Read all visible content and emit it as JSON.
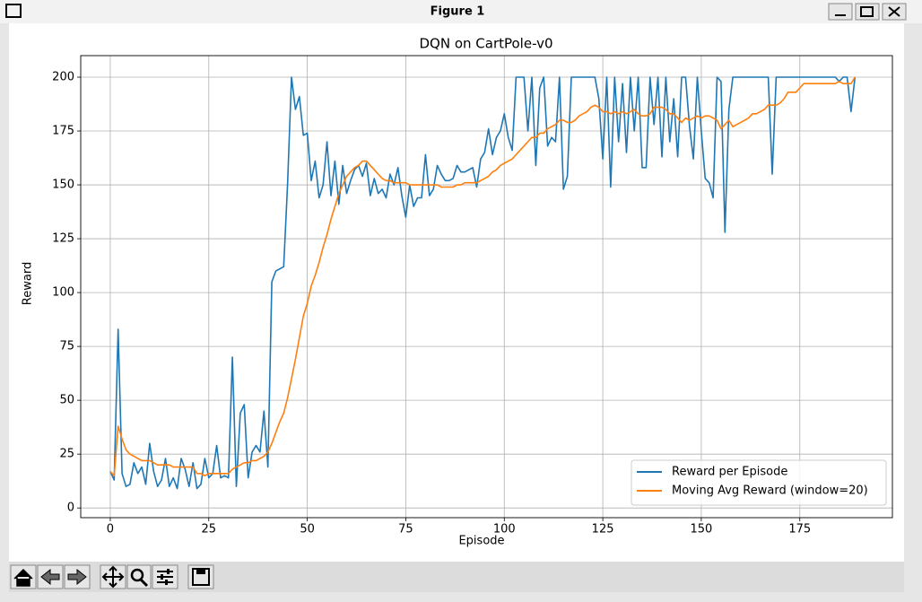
{
  "window": {
    "title": "Figure 1"
  },
  "chart_data": {
    "type": "line",
    "title": "DQN on CartPole-v0",
    "x_label": "Episode",
    "y_label": "Reward",
    "x": [
      0,
      1,
      2,
      3,
      4,
      5,
      6,
      7,
      8,
      9,
      10,
      11,
      12,
      13,
      14,
      15,
      16,
      17,
      18,
      19,
      20,
      21,
      22,
      23,
      24,
      25,
      26,
      27,
      28,
      29,
      30,
      31,
      32,
      33,
      34,
      35,
      36,
      37,
      38,
      39,
      40,
      41,
      42,
      43,
      44,
      45,
      46,
      47,
      48,
      49,
      50,
      51,
      52,
      53,
      54,
      55,
      56,
      57,
      58,
      59,
      60,
      61,
      62,
      63,
      64,
      65,
      66,
      67,
      68,
      69,
      70,
      71,
      72,
      73,
      74,
      75,
      76,
      77,
      78,
      79,
      80,
      81,
      82,
      83,
      84,
      85,
      86,
      87,
      88,
      89,
      90,
      91,
      92,
      93,
      94,
      95,
      96,
      97,
      98,
      99,
      100,
      101,
      102,
      103,
      104,
      105,
      106,
      107,
      108,
      109,
      110,
      111,
      112,
      113,
      114,
      115,
      116,
      117,
      118,
      119,
      120,
      121,
      122,
      123,
      124,
      125,
      126,
      127,
      128,
      129,
      130,
      131,
      132,
      133,
      134,
      135,
      136,
      137,
      138,
      139,
      140,
      141,
      142,
      143,
      144,
      145,
      146,
      147,
      148,
      149,
      150,
      151,
      152,
      153,
      154,
      155,
      156,
      157,
      158,
      159,
      160,
      161,
      162,
      163,
      164,
      165,
      166,
      167,
      168,
      169,
      170,
      171,
      172,
      173,
      174,
      175,
      176,
      177,
      178,
      179,
      180,
      181,
      182,
      183,
      184,
      185,
      186,
      187,
      188,
      189
    ],
    "series": [
      {
        "name": "Reward per Episode",
        "color": "#1f77b4",
        "values": [
          17,
          13,
          83,
          16,
          10,
          11,
          21,
          16,
          19,
          11,
          30,
          17,
          10,
          13,
          23,
          10,
          14,
          9,
          23,
          18,
          10,
          21,
          9,
          11,
          23,
          14,
          16,
          29,
          14,
          15,
          14,
          70,
          10,
          44,
          48,
          14,
          26,
          29,
          26,
          45,
          19,
          105,
          110,
          111,
          112,
          150,
          200,
          185,
          191,
          173,
          174,
          152,
          161,
          144,
          150,
          170,
          145,
          161,
          141,
          159,
          146,
          152,
          157,
          159,
          154,
          160,
          145,
          153,
          146,
          148,
          144,
          155,
          150,
          158,
          145,
          135,
          150,
          140,
          144,
          144,
          164,
          145,
          148,
          159,
          155,
          152,
          152,
          153,
          159,
          156,
          156,
          157,
          158,
          149,
          162,
          165,
          176,
          164,
          172,
          175,
          183,
          172,
          166,
          200,
          200,
          200,
          175,
          200,
          159,
          195,
          200,
          168,
          172,
          170,
          200,
          148,
          154,
          200,
          200,
          200,
          200,
          200,
          200,
          200,
          190,
          162,
          200,
          149,
          200,
          170,
          197,
          165,
          200,
          175,
          200,
          158,
          158,
          200,
          178,
          200,
          163,
          200,
          170,
          190,
          163,
          200,
          200,
          177,
          162,
          200,
          175,
          153,
          151,
          144,
          200,
          198,
          128,
          185,
          200,
          200,
          200,
          200,
          200,
          200,
          200,
          200,
          200,
          200,
          155,
          200,
          200,
          200,
          200,
          200,
          200,
          200,
          200,
          200,
          200,
          200,
          200,
          200,
          200,
          200,
          200,
          198,
          200,
          200,
          184,
          200
        ]
      },
      {
        "name": "Moving Avg Reward (window=20)",
        "color": "#ff7f0e",
        "values": [
          17,
          15,
          38,
          32,
          27,
          25,
          24,
          23,
          22,
          22,
          22,
          21,
          20,
          20,
          20,
          20,
          19,
          19,
          19,
          19,
          19,
          19,
          16,
          16,
          15,
          16,
          16,
          16,
          16,
          16,
          16,
          18,
          19,
          20,
          21,
          21,
          22,
          22,
          23,
          24,
          26,
          30,
          35,
          40,
          44,
          51,
          60,
          69,
          79,
          89,
          95,
          103,
          108,
          114,
          121,
          127,
          134,
          140,
          146,
          150,
          154,
          156,
          158,
          159,
          161,
          161,
          159,
          157,
          155,
          153,
          152,
          152,
          151,
          151,
          151,
          151,
          150,
          150,
          150,
          150,
          150,
          150,
          150,
          150,
          149,
          149,
          149,
          149,
          150,
          150,
          151,
          151,
          151,
          151,
          152,
          153,
          154,
          156,
          157,
          159,
          160,
          161,
          162,
          164,
          166,
          168,
          170,
          172,
          172,
          174,
          174,
          176,
          177,
          178,
          180,
          180,
          179,
          179,
          180,
          182,
          183,
          184,
          186,
          187,
          186,
          184,
          184,
          183,
          184,
          183,
          184,
          183,
          184,
          185,
          183,
          182,
          182,
          183,
          186,
          186,
          186,
          185,
          183,
          183,
          181,
          179,
          181,
          180,
          181,
          182,
          181,
          182,
          182,
          181,
          180,
          176,
          178,
          180,
          177,
          178,
          179,
          180,
          181,
          183,
          183,
          184,
          185,
          187,
          187,
          187,
          188,
          190,
          193,
          193,
          193,
          195,
          197,
          197,
          197,
          197,
          197,
          197,
          197,
          197,
          197,
          198,
          197,
          197,
          197,
          200
        ]
      }
    ],
    "xlim": [
      -7.5,
      198.5
    ],
    "xticks": [
      0,
      25,
      50,
      75,
      100,
      125,
      150,
      175
    ],
    "ylim": [
      -4.5,
      210
    ],
    "yticks": [
      0,
      25,
      50,
      75,
      100,
      125,
      150,
      175,
      200
    ],
    "grid": true,
    "legend": "lower right"
  }
}
